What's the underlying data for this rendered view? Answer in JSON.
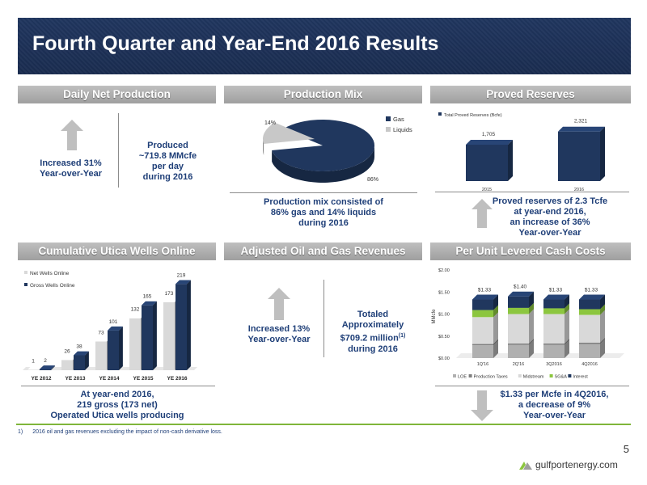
{
  "page": {
    "title": "Fourth Quarter and Year-End 2016 Results",
    "page_number": "5"
  },
  "sections": {
    "daily_net_production": {
      "heading": "Daily Net Production",
      "increase_text_1": "Increased 31%",
      "increase_text_2": "Year-over-Year",
      "produced_1": "Produced",
      "produced_2": "~719.8 MMcfe",
      "produced_3": "per day",
      "produced_4": "during 2016"
    },
    "production_mix": {
      "heading": "Production Mix",
      "caption_1": "Production mix consisted of",
      "caption_2": "86% gas and 14% liquids",
      "caption_3": "during 2016"
    },
    "proved_reserves": {
      "heading": "Proved Reserves",
      "caption_1": "Proved reserves of 2.3 Tcfe",
      "caption_2": "at year-end 2016,",
      "caption_3": "an increase of 36%",
      "caption_4": "Year-over-Year"
    },
    "utica_wells": {
      "heading": "Cumulative Utica Wells Online",
      "caption_1": "At year-end 2016,",
      "caption_2": "219 gross (173 net)",
      "caption_3": "Operated Utica wells producing"
    },
    "revenues": {
      "heading": "Adjusted Oil and Gas Revenues",
      "increase_1": "Increased 13%",
      "increase_2": "Year-over-Year",
      "totaled_1": "Totaled",
      "totaled_2": "Approximately",
      "totaled_3": "$709.2 million",
      "totaled_sup": "(1)",
      "totaled_4": "during 2016"
    },
    "unit_costs": {
      "heading": "Per Unit Levered Cash Costs",
      "caption_1": "$1.33 per Mcfe in 4Q2016,",
      "caption_2": "a decrease of 9%",
      "caption_3": "Year-over-Year"
    }
  },
  "footnote": {
    "number": "1)",
    "text": "2016 oil and gas revenues excluding the impact of non-cash derivative loss."
  },
  "logo": {
    "text": "gulfportenergy.com"
  },
  "colors": {
    "navy": "#1f3864",
    "gray": "#c8c8c8",
    "green": "#8cc63f",
    "accent_text": "#1f3f78"
  },
  "chart_data": [
    {
      "id": "production_mix",
      "type": "pie",
      "categories": [
        "Gas",
        "Liquids"
      ],
      "values": [
        86,
        14
      ],
      "data_labels": [
        "86%",
        "14%"
      ],
      "legend": [
        "Gas",
        "Liquids"
      ],
      "legend_placement": "top-right"
    },
    {
      "id": "proved_reserves",
      "type": "bar",
      "categories": [
        "2015",
        "2016"
      ],
      "series": [
        {
          "name": "Total Proved Reserves (Bcfe)",
          "values": [
            1705,
            2321
          ]
        }
      ],
      "data_labels": [
        "1,705",
        "2,321"
      ],
      "ylim": [
        0,
        2500
      ],
      "legend_placement": "top-left"
    },
    {
      "id": "utica_wells",
      "type": "bar",
      "categories": [
        "YE 2012",
        "YE 2013",
        "YE 2014",
        "YE 2015",
        "YE 2016"
      ],
      "series": [
        {
          "name": "Net Wells Online",
          "values": [
            1,
            26,
            73,
            132,
            173
          ]
        },
        {
          "name": "Gross Wells Online",
          "values": [
            2,
            38,
            101,
            165,
            219
          ]
        }
      ],
      "ylim": [
        0,
        230
      ],
      "legend_placement": "top-left"
    },
    {
      "id": "unit_costs",
      "type": "bar",
      "stacked": true,
      "categories": [
        "1Q'16",
        "2Q'16",
        "3Q2016",
        "4Q2016"
      ],
      "ylabel": "MMcfe",
      "ylim": [
        0,
        2.0
      ],
      "yticks": [
        "$0.00",
        "$0.50",
        "$1.00",
        "$1.50",
        "$2.00"
      ],
      "series": [
        {
          "name": "LOE",
          "values": [
            0.29,
            0.3,
            0.3,
            0.32
          ]
        },
        {
          "name": "Production Taxes",
          "values": [
            0.03,
            0.03,
            0.03,
            0.03
          ]
        },
        {
          "name": "Midstream",
          "values": [
            0.61,
            0.67,
            0.67,
            0.63
          ]
        },
        {
          "name": "SG&A",
          "values": [
            0.16,
            0.14,
            0.13,
            0.13
          ]
        },
        {
          "name": "Interest",
          "values": [
            0.24,
            0.26,
            0.2,
            0.22
          ]
        }
      ],
      "totals": [
        "$1.33",
        "$1.40",
        "$1.33",
        "$1.33"
      ],
      "legend_placement": "bottom"
    }
  ]
}
